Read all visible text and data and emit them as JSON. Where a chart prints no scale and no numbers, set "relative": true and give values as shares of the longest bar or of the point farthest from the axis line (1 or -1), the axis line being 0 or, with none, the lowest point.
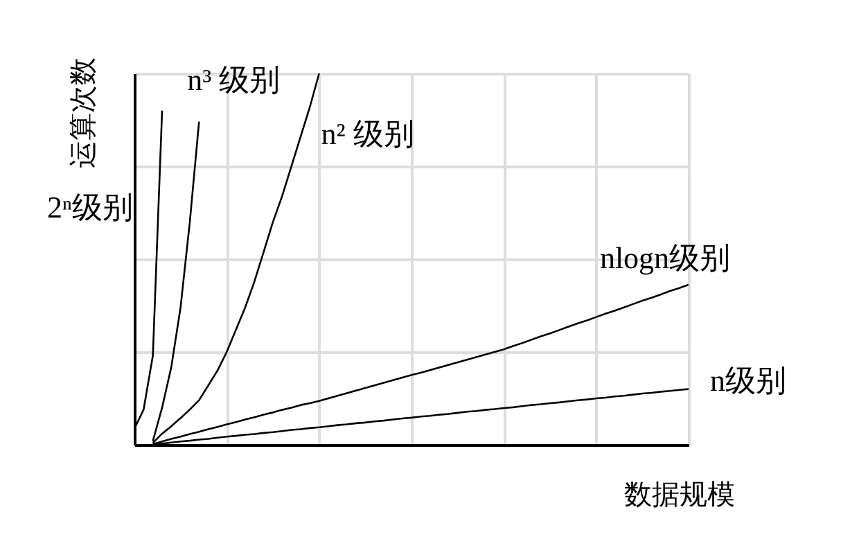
{
  "chart_data": {
    "type": "line",
    "xlabel": "数据规模",
    "ylabel": "运算次数",
    "relative": true,
    "categories": [
      null,
      null,
      null,
      null,
      null,
      null,
      null,
      null,
      null,
      null,
      null,
      null,
      null,
      null,
      null,
      null,
      null,
      null,
      null,
      null,
      null,
      null,
      null,
      null,
      null,
      null,
      null,
      null,
      null,
      null,
      null,
      null,
      null,
      null,
      null,
      null,
      null,
      null,
      null,
      null,
      null,
      null,
      null,
      null,
      null,
      null,
      null,
      null,
      null,
      null,
      null,
      null,
      null,
      null,
      null,
      null,
      null,
      null,
      null,
      null,
      null
    ],
    "grid": true,
    "tick_labels": false,
    "marker": "none",
    "line_style": "solid",
    "series": [
      {
        "name": "2ⁿ级别",
        "color": "#000000",
        "values": [
          0.043,
          0.095,
          0.24,
          0.9,
          null,
          null,
          null,
          null,
          null,
          null,
          null,
          null,
          null,
          null,
          null,
          null,
          null,
          null,
          null,
          null,
          null,
          null,
          null,
          null,
          null,
          null,
          null,
          null,
          null,
          null,
          null,
          null,
          null,
          null,
          null,
          null,
          null,
          null,
          null,
          null,
          null,
          null,
          null,
          null,
          null,
          null,
          null,
          null,
          null,
          null,
          null,
          null,
          null,
          null,
          null,
          null,
          null,
          null,
          null,
          null,
          null
        ]
      },
      {
        "name": "n³ 级别",
        "color": "#000000",
        "values": [
          null,
          null,
          0.01,
          0.1,
          0.21,
          0.37,
          0.6,
          0.87,
          null,
          null,
          null,
          null,
          null,
          null,
          null,
          null,
          null,
          null,
          null,
          null,
          null,
          null,
          null,
          null,
          null,
          null,
          null,
          null,
          null,
          null,
          null,
          null,
          null,
          null,
          null,
          null,
          null,
          null,
          null,
          null,
          null,
          null,
          null,
          null,
          null,
          null,
          null,
          null,
          null,
          null,
          null,
          null,
          null,
          null,
          null,
          null,
          null,
          null,
          null,
          null,
          null
        ]
      },
      {
        "name": "n² 级别",
        "color": "#000000",
        "values": [
          null,
          null,
          0.005,
          0.03,
          0.05,
          0.072,
          0.095,
          0.12,
          0.16,
          0.2,
          0.25,
          0.31,
          0.37,
          0.44,
          0.52,
          0.6,
          0.67,
          0.75,
          0.83,
          0.91,
          1.0,
          null,
          null,
          null,
          null,
          null,
          null,
          null,
          null,
          null,
          null,
          null,
          null,
          null,
          null,
          null,
          null,
          null,
          null,
          null,
          null,
          null,
          null,
          null,
          null,
          null,
          null,
          null,
          null,
          null,
          null,
          null,
          null,
          null,
          null,
          null,
          null,
          null,
          null,
          null,
          null
        ]
      },
      {
        "name": "nlogn级别",
        "color": "#000000",
        "values": [
          null,
          null,
          0.002,
          0.009,
          0.016,
          0.022,
          0.029,
          0.035,
          0.042,
          0.048,
          0.055,
          0.061,
          0.068,
          0.074,
          0.081,
          0.087,
          0.094,
          0.1,
          0.107,
          0.112,
          0.118,
          0.125,
          0.132,
          0.139,
          0.146,
          0.153,
          0.16,
          0.167,
          0.174,
          0.181,
          0.188,
          0.194,
          0.201,
          0.208,
          0.215,
          0.222,
          0.229,
          0.236,
          0.243,
          0.25,
          0.257,
          0.266,
          0.274,
          0.283,
          0.292,
          0.3,
          0.309,
          0.318,
          0.327,
          0.335,
          0.344,
          0.353,
          0.361,
          0.37,
          0.379,
          0.388,
          0.396,
          0.405,
          0.414,
          0.422,
          0.431
        ]
      },
      {
        "name": "n级别",
        "color": "#000000",
        "values": [
          null,
          null,
          0.001,
          0.003,
          0.006,
          0.009,
          0.011,
          0.014,
          0.016,
          0.019,
          0.022,
          0.024,
          0.027,
          0.029,
          0.032,
          0.034,
          0.037,
          0.04,
          0.042,
          0.045,
          0.047,
          0.05,
          0.053,
          0.055,
          0.058,
          0.06,
          0.063,
          0.065,
          0.068,
          0.071,
          0.073,
          0.076,
          0.078,
          0.081,
          0.083,
          0.086,
          0.089,
          0.091,
          0.094,
          0.096,
          0.099,
          0.101,
          0.104,
          0.107,
          0.109,
          0.112,
          0.114,
          0.117,
          0.12,
          0.122,
          0.125,
          0.127,
          0.13,
          0.132,
          0.135,
          0.138,
          0.14,
          0.143,
          0.145,
          0.148,
          0.15
        ]
      }
    ]
  }
}
